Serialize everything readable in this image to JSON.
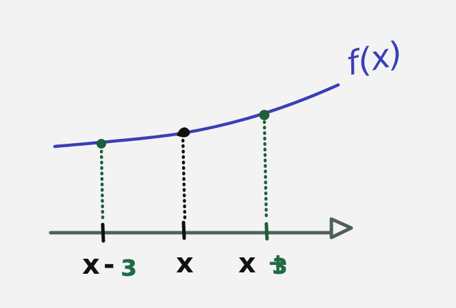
{
  "diagram": {
    "function_label": "f(x)",
    "points": [
      {
        "x_label": "x",
        "epsilon_sign": "-",
        "epsilon_symbol": "ε"
      },
      {
        "x_label": "x",
        "epsilon_sign": "",
        "epsilon_symbol": ""
      },
      {
        "x_label": "x",
        "epsilon_sign": "+",
        "epsilon_symbol": "ε"
      }
    ],
    "colors": {
      "curve": "#3a3fb6",
      "axis": "#4f5f5e",
      "marker_green": "#1c5f3a",
      "marker_black": "#111111",
      "text_black": "#121212",
      "text_green": "#1f6b45"
    }
  }
}
